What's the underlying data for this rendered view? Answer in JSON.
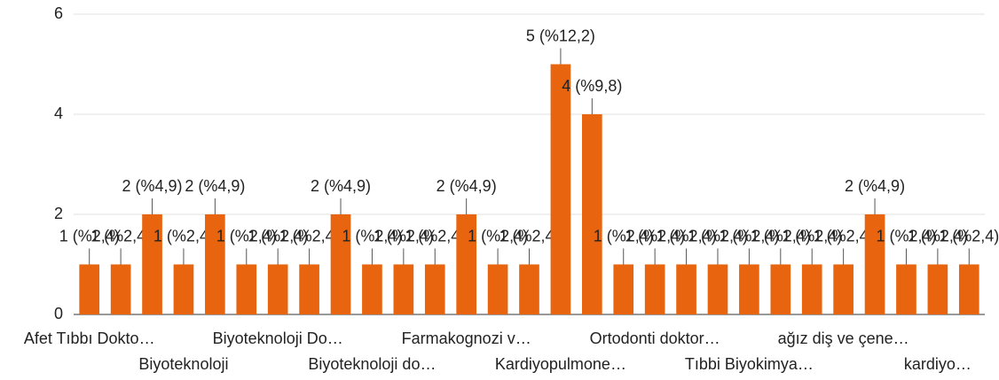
{
  "chart_data": {
    "type": "bar",
    "categories": [
      "Afet Tıbbı Dokto…",
      null,
      null,
      "Biyoteknoloji",
      null,
      null,
      "Biyoteknoloji Do…",
      null,
      null,
      "Biyoteknoloji do…",
      null,
      null,
      "Farmakognozi v…",
      null,
      null,
      "Kardiyopulmone…",
      null,
      null,
      "Ortodonti doktor…",
      null,
      null,
      "Tıbbi Biyokimya…",
      null,
      null,
      "ağız diş ve çene…",
      null,
      null,
      "kardiyo…",
      null
    ],
    "values": [
      1,
      1,
      2,
      1,
      2,
      1,
      1,
      1,
      2,
      1,
      1,
      1,
      2,
      1,
      1,
      5,
      4,
      1,
      1,
      1,
      1,
      1,
      1,
      1,
      1,
      2,
      1,
      1,
      1
    ],
    "value_labels": [
      "1 (%2,4)",
      "1 (%2,4)",
      "2 (%4,9)",
      "1 (%2,4)",
      "2 (%4,9)",
      "1 (%2,4)",
      "1 (%2,4)",
      "1 (%2,4)",
      "2 (%4,9)",
      "1 (%2,4)",
      "1 (%2,4)",
      "1 (%2,4)",
      "2 (%4,9)",
      "1 (%2,4)",
      "1 (%2,4)",
      "5 (%12,2)",
      "4 (%9,8)",
      "1 (%2,4)",
      "1 (%2,4)",
      "1 (%2,4)",
      "1 (%2,4)",
      "1 (%2,4)",
      "1 (%2,4)",
      "1 (%2,4)",
      "1 (%2,4)",
      "2 (%4,9)",
      "1 (%2,4)",
      "1 (%2,4)",
      "1 (%2,4)"
    ],
    "color": "#e8640f",
    "ylim": [
      0,
      6
    ],
    "yticks": [
      0,
      2,
      4,
      6
    ],
    "grid": true
  }
}
